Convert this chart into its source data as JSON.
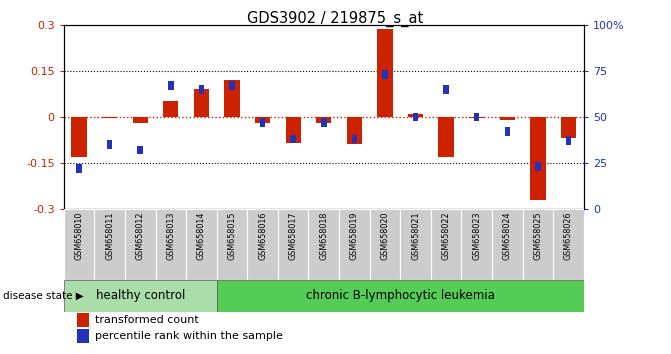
{
  "title": "GDS3902 / 219875_s_at",
  "samples": [
    "GSM658010",
    "GSM658011",
    "GSM658012",
    "GSM658013",
    "GSM658014",
    "GSM658015",
    "GSM658016",
    "GSM658017",
    "GSM658018",
    "GSM658019",
    "GSM658020",
    "GSM658021",
    "GSM658022",
    "GSM658023",
    "GSM658024",
    "GSM658025",
    "GSM658026"
  ],
  "red_values": [
    -0.13,
    -0.005,
    -0.02,
    0.05,
    0.09,
    0.12,
    -0.02,
    -0.085,
    -0.02,
    -0.09,
    0.285,
    0.01,
    -0.13,
    -0.005,
    -0.01,
    -0.27,
    -0.07
  ],
  "blue_values_pct": [
    22,
    35,
    32,
    67,
    65,
    67,
    47,
    38,
    47,
    38,
    73,
    50,
    65,
    50,
    42,
    23,
    37
  ],
  "ylim_left": [
    -0.3,
    0.3
  ],
  "ylim_right": [
    0,
    100
  ],
  "yticks_left": [
    -0.3,
    -0.15,
    0.0,
    0.15,
    0.3
  ],
  "yticks_right": [
    0,
    25,
    50,
    75,
    100
  ],
  "ytick_labels_right": [
    "0",
    "25",
    "50",
    "75",
    "100%"
  ],
  "hline_values": [
    -0.15,
    0.0,
    0.15
  ],
  "red_color": "#cc2200",
  "blue_color": "#2233bb",
  "healthy_count": 5,
  "healthy_label": "healthy control",
  "disease_label": "chronic B-lymphocytic leukemia",
  "disease_state_label": "disease state",
  "legend_red": "transformed count",
  "legend_blue": "percentile rank within the sample",
  "group_color_healthy": "#aaddaa",
  "group_color_disease": "#55cc55",
  "sample_bg": "#cccccc"
}
